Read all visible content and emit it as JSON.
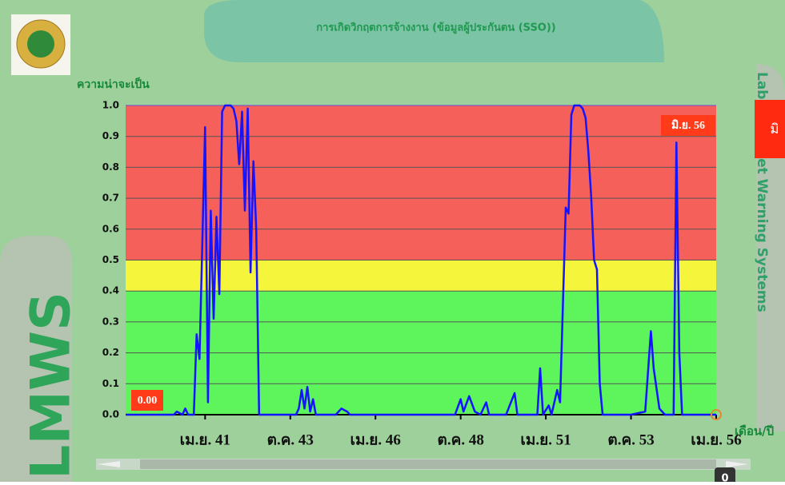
{
  "chart_data": {
    "type": "line",
    "title": "การเกิดวิกฤตการจ้างงาน (ข้อมูลผู้ประกันตน (SSO))",
    "y_label": "ความน่าจะเป็น",
    "x_label": "เดือน/ปี",
    "side_title": "LMWS",
    "side_subtitle": "Labor Market Warning Systems",
    "button_label": "มิ",
    "annotations": [
      "มิ.ย. 56",
      "0.00"
    ],
    "scroll_value": "0",
    "x": [
      -28,
      -11,
      -10,
      -8,
      -7,
      -6,
      -4,
      -3,
      -2,
      -1,
      0,
      1,
      2,
      3,
      4,
      5,
      6,
      7,
      8,
      9,
      10,
      11,
      12,
      13,
      14,
      15,
      16,
      17,
      18,
      19,
      30,
      32,
      33,
      34,
      35,
      36,
      37,
      38,
      39,
      46,
      48,
      50,
      51,
      88,
      90,
      91,
      93,
      95,
      97,
      99,
      100,
      106,
      109,
      110,
      117,
      118,
      119,
      121,
      122,
      124,
      125,
      126,
      127,
      128,
      129,
      130,
      131,
      132,
      133,
      134,
      135,
      136,
      137,
      138,
      139,
      140,
      150,
      155,
      157,
      158,
      160,
      162,
      165,
      166,
      167,
      168,
      180
    ],
    "series": [
      {
        "color": "#1414ff",
        "values": [
          0,
          0,
          0.01,
          0,
          0.02,
          0,
          0,
          0.26,
          0.18,
          0.55,
          0.93,
          0.04,
          0.66,
          0.31,
          0.64,
          0.39,
          0.98,
          1,
          1,
          1,
          0.99,
          0.95,
          0.81,
          0.98,
          0.66,
          0.99,
          0.46,
          0.82,
          0.6,
          0,
          0,
          0,
          0.02,
          0.08,
          0.02,
          0.09,
          0.01,
          0.05,
          0,
          0,
          0.02,
          0.01,
          0,
          0,
          0.05,
          0.01,
          0.06,
          0.01,
          0,
          0.04,
          0,
          0,
          0.07,
          0,
          0,
          0.15,
          0,
          0.03,
          0,
          0.08,
          0.04,
          0.35,
          0.67,
          0.65,
          0.97,
          1,
          1,
          1,
          0.99,
          0.96,
          0.85,
          0.7,
          0.5,
          0.47,
          0.1,
          0,
          0,
          0.01,
          0.27,
          0.15,
          0.02,
          0,
          0,
          0.88,
          0.2,
          0,
          0
        ]
      }
    ],
    "bands": [
      {
        "from": 0.5,
        "to": 1,
        "color": "#f5605a"
      },
      {
        "from": 0.4,
        "to": 0.5,
        "color": "#f5f53c"
      },
      {
        "from": 0,
        "to": 0.4,
        "color": "#5ef55c"
      }
    ],
    "xlim": [
      -28,
      180
    ],
    "xticks": [
      {
        "value": 0,
        "label": "เม.ย. 41"
      },
      {
        "value": 30,
        "label": "ต.ค. 43"
      },
      {
        "value": 60,
        "label": "เม.ย. 46"
      },
      {
        "value": 90,
        "label": "ต.ค. 48"
      },
      {
        "value": 120,
        "label": "เม.ย. 51"
      },
      {
        "value": 150,
        "label": "ต.ค. 53"
      },
      {
        "value": 180,
        "label": "เม.ย. 56"
      }
    ],
    "ylim": [
      0,
      1
    ],
    "yticks": [
      {
        "value": 0,
        "label": "0.0"
      },
      0.1,
      0.2,
      0.3,
      0.4,
      0.5,
      0.6,
      0.7,
      0.8,
      0.9,
      {
        "value": 1,
        "label": "1.0"
      }
    ],
    "grid": true
  }
}
